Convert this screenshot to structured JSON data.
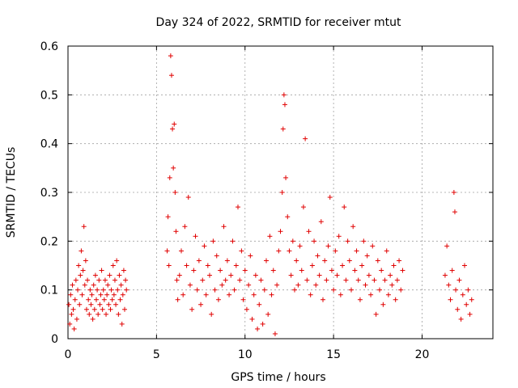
{
  "colors": {
    "series": "#e00000",
    "grid": "#a0a0a0",
    "axis": "#000000"
  },
  "chart_data": {
    "type": "scatter",
    "title": "Day 324 of 2022, SRMTID for receiver mtut",
    "xlabel": "GPS time / hours",
    "ylabel": "SRMTID / TECUs",
    "xlim": [
      0,
      24
    ],
    "ylim": [
      0,
      0.6
    ],
    "xticks": [
      0,
      5,
      10,
      15,
      20
    ],
    "yticks": [
      0,
      0.1,
      0.2,
      0.3,
      0.4,
      0.5,
      0.6
    ],
    "grid": true,
    "series": [
      {
        "name": "SRMTID",
        "marker": "plus",
        "points": [
          [
            0.05,
            0.07
          ],
          [
            0.1,
            0.03
          ],
          [
            0.15,
            0.09
          ],
          [
            0.2,
            0.05
          ],
          [
            0.25,
            0.11
          ],
          [
            0.3,
            0.06
          ],
          [
            0.35,
            0.02
          ],
          [
            0.4,
            0.08
          ],
          [
            0.45,
            0.12
          ],
          [
            0.5,
            0.04
          ],
          [
            0.55,
            0.1
          ],
          [
            0.6,
            0.15
          ],
          [
            0.65,
            0.07
          ],
          [
            0.7,
            0.13
          ],
          [
            0.75,
            0.18
          ],
          [
            0.8,
            0.09
          ],
          [
            0.85,
            0.14
          ],
          [
            0.9,
            0.23
          ],
          [
            0.95,
            0.11
          ],
          [
            1.0,
            0.16
          ],
          [
            1.05,
            0.06
          ],
          [
            1.1,
            0.12
          ],
          [
            1.15,
            0.08
          ],
          [
            1.2,
            0.05
          ],
          [
            1.25,
            0.1
          ],
          [
            1.3,
            0.07
          ],
          [
            1.35,
            0.09
          ],
          [
            1.4,
            0.04
          ],
          [
            1.45,
            0.11
          ],
          [
            1.5,
            0.06
          ],
          [
            1.55,
            0.13
          ],
          [
            1.6,
            0.08
          ],
          [
            1.65,
            0.1
          ],
          [
            1.7,
            0.05
          ],
          [
            1.75,
            0.12
          ],
          [
            1.8,
            0.07
          ],
          [
            1.85,
            0.09
          ],
          [
            1.9,
            0.14
          ],
          [
            1.95,
            0.06
          ],
          [
            2.0,
            0.1
          ],
          [
            2.05,
            0.08
          ],
          [
            2.1,
            0.12
          ],
          [
            2.15,
            0.05
          ],
          [
            2.2,
            0.09
          ],
          [
            2.25,
            0.11
          ],
          [
            2.3,
            0.07
          ],
          [
            2.35,
            0.13
          ],
          [
            2.4,
            0.06
          ],
          [
            2.45,
            0.1
          ],
          [
            2.5,
            0.08
          ],
          [
            2.55,
            0.15
          ],
          [
            2.6,
            0.09
          ],
          [
            2.65,
            0.12
          ],
          [
            2.7,
            0.07
          ],
          [
            2.75,
            0.16
          ],
          [
            2.8,
            0.1
          ],
          [
            2.85,
            0.05
          ],
          [
            2.9,
            0.13
          ],
          [
            2.95,
            0.08
          ],
          [
            3.0,
            0.11
          ],
          [
            3.05,
            0.03
          ],
          [
            3.1,
            0.09
          ],
          [
            3.15,
            0.14
          ],
          [
            3.2,
            0.06
          ],
          [
            3.25,
            0.12
          ],
          [
            3.3,
            0.1
          ],
          [
            5.6,
            0.18
          ],
          [
            5.65,
            0.25
          ],
          [
            5.7,
            0.15
          ],
          [
            5.75,
            0.33
          ],
          [
            5.8,
            0.58
          ],
          [
            5.85,
            0.54
          ],
          [
            5.9,
            0.43
          ],
          [
            5.95,
            0.35
          ],
          [
            6.0,
            0.44
          ],
          [
            6.05,
            0.3
          ],
          [
            6.1,
            0.22
          ],
          [
            6.15,
            0.12
          ],
          [
            6.2,
            0.08
          ],
          [
            6.3,
            0.13
          ],
          [
            6.4,
            0.18
          ],
          [
            6.5,
            0.09
          ],
          [
            6.6,
            0.23
          ],
          [
            6.7,
            0.15
          ],
          [
            6.8,
            0.29
          ],
          [
            6.9,
            0.11
          ],
          [
            7.0,
            0.06
          ],
          [
            7.1,
            0.14
          ],
          [
            7.2,
            0.21
          ],
          [
            7.3,
            0.1
          ],
          [
            7.4,
            0.16
          ],
          [
            7.5,
            0.07
          ],
          [
            7.6,
            0.12
          ],
          [
            7.7,
            0.19
          ],
          [
            7.8,
            0.09
          ],
          [
            7.9,
            0.15
          ],
          [
            8.0,
            0.13
          ],
          [
            8.1,
            0.05
          ],
          [
            8.2,
            0.2
          ],
          [
            8.3,
            0.1
          ],
          [
            8.4,
            0.17
          ],
          [
            8.5,
            0.08
          ],
          [
            8.6,
            0.14
          ],
          [
            8.7,
            0.11
          ],
          [
            8.8,
            0.23
          ],
          [
            8.9,
            0.12
          ],
          [
            9.0,
            0.16
          ],
          [
            9.1,
            0.09
          ],
          [
            9.2,
            0.13
          ],
          [
            9.3,
            0.2
          ],
          [
            9.4,
            0.1
          ],
          [
            9.5,
            0.15
          ],
          [
            9.6,
            0.27
          ],
          [
            9.7,
            0.12
          ],
          [
            9.8,
            0.18
          ],
          [
            9.9,
            0.08
          ],
          [
            10.0,
            0.14
          ],
          [
            10.1,
            0.06
          ],
          [
            10.2,
            0.11
          ],
          [
            10.3,
            0.17
          ],
          [
            10.4,
            0.04
          ],
          [
            10.5,
            0.09
          ],
          [
            10.6,
            0.13
          ],
          [
            10.7,
            0.02
          ],
          [
            10.8,
            0.07
          ],
          [
            10.9,
            0.12
          ],
          [
            11.0,
            0.03
          ],
          [
            11.1,
            0.1
          ],
          [
            11.2,
            0.16
          ],
          [
            11.3,
            0.05
          ],
          [
            11.4,
            0.21
          ],
          [
            11.5,
            0.09
          ],
          [
            11.6,
            0.14
          ],
          [
            11.7,
            0.01
          ],
          [
            11.8,
            0.11
          ],
          [
            11.9,
            0.18
          ],
          [
            12.0,
            0.22
          ],
          [
            12.1,
            0.3
          ],
          [
            12.15,
            0.43
          ],
          [
            12.2,
            0.5
          ],
          [
            12.25,
            0.48
          ],
          [
            12.3,
            0.33
          ],
          [
            12.4,
            0.25
          ],
          [
            12.5,
            0.18
          ],
          [
            12.6,
            0.13
          ],
          [
            12.7,
            0.2
          ],
          [
            12.8,
            0.1
          ],
          [
            12.9,
            0.16
          ],
          [
            13.0,
            0.11
          ],
          [
            13.1,
            0.19
          ],
          [
            13.2,
            0.14
          ],
          [
            13.3,
            0.27
          ],
          [
            13.4,
            0.41
          ],
          [
            13.5,
            0.12
          ],
          [
            13.6,
            0.22
          ],
          [
            13.7,
            0.09
          ],
          [
            13.8,
            0.15
          ],
          [
            13.9,
            0.2
          ],
          [
            14.0,
            0.11
          ],
          [
            14.1,
            0.17
          ],
          [
            14.2,
            0.13
          ],
          [
            14.3,
            0.24
          ],
          [
            14.4,
            0.08
          ],
          [
            14.5,
            0.16
          ],
          [
            14.6,
            0.12
          ],
          [
            14.7,
            0.19
          ],
          [
            14.8,
            0.29
          ],
          [
            14.9,
            0.14
          ],
          [
            15.0,
            0.1
          ],
          [
            15.1,
            0.18
          ],
          [
            15.2,
            0.13
          ],
          [
            15.3,
            0.21
          ],
          [
            15.4,
            0.09
          ],
          [
            15.5,
            0.15
          ],
          [
            15.6,
            0.27
          ],
          [
            15.7,
            0.12
          ],
          [
            15.8,
            0.2
          ],
          [
            15.9,
            0.16
          ],
          [
            16.0,
            0.1
          ],
          [
            16.1,
            0.23
          ],
          [
            16.2,
            0.14
          ],
          [
            16.3,
            0.18
          ],
          [
            16.4,
            0.12
          ],
          [
            16.5,
            0.08
          ],
          [
            16.6,
            0.15
          ],
          [
            16.7,
            0.2
          ],
          [
            16.8,
            0.11
          ],
          [
            16.9,
            0.17
          ],
          [
            17.0,
            0.13
          ],
          [
            17.1,
            0.09
          ],
          [
            17.2,
            0.19
          ],
          [
            17.3,
            0.12
          ],
          [
            17.4,
            0.05
          ],
          [
            17.5,
            0.16
          ],
          [
            17.6,
            0.1
          ],
          [
            17.7,
            0.14
          ],
          [
            17.8,
            0.07
          ],
          [
            17.9,
            0.12
          ],
          [
            18.0,
            0.18
          ],
          [
            18.1,
            0.09
          ],
          [
            18.2,
            0.13
          ],
          [
            18.3,
            0.11
          ],
          [
            18.4,
            0.15
          ],
          [
            18.5,
            0.08
          ],
          [
            18.6,
            0.12
          ],
          [
            18.7,
            0.16
          ],
          [
            18.8,
            0.1
          ],
          [
            18.9,
            0.14
          ],
          [
            21.3,
            0.13
          ],
          [
            21.4,
            0.19
          ],
          [
            21.5,
            0.11
          ],
          [
            21.6,
            0.08
          ],
          [
            21.7,
            0.14
          ],
          [
            21.8,
            0.3
          ],
          [
            21.85,
            0.26
          ],
          [
            21.9,
            0.1
          ],
          [
            22.0,
            0.06
          ],
          [
            22.1,
            0.12
          ],
          [
            22.2,
            0.04
          ],
          [
            22.3,
            0.09
          ],
          [
            22.4,
            0.15
          ],
          [
            22.5,
            0.07
          ],
          [
            22.6,
            0.1
          ],
          [
            22.7,
            0.05
          ],
          [
            22.8,
            0.08
          ]
        ]
      }
    ]
  }
}
